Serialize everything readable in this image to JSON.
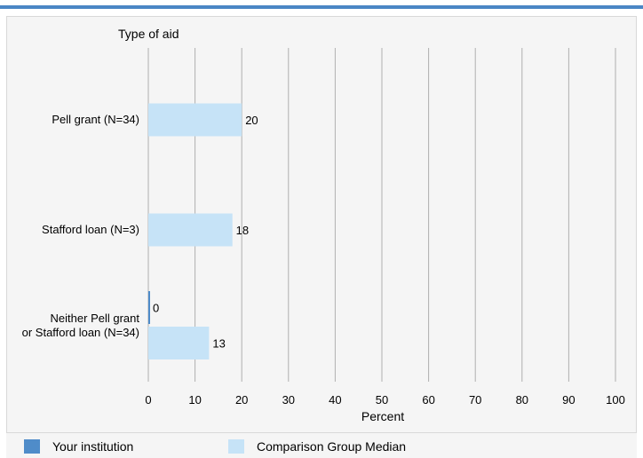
{
  "colors": {
    "accent_bar": "#4a86c5",
    "your_institution": "#4f8cc9",
    "comparison_median": "#c6e3f7",
    "gridline": "#b0b0b0",
    "panel_bg": "#f5f5f5"
  },
  "legend": {
    "your_institution_label": "Your institution",
    "comparison_label": "Comparison Group Median"
  },
  "chart_data": {
    "type": "bar",
    "orientation": "horizontal",
    "title": "Type of aid",
    "xlabel": "Percent",
    "ylabel": "",
    "xlim": [
      0,
      100
    ],
    "x_ticks": [
      0,
      10,
      20,
      30,
      40,
      50,
      60,
      70,
      80,
      90,
      100
    ],
    "grid": true,
    "legend_position": "bottom",
    "categories": [
      "Pell grant  (N=34)",
      "Stafford loan (N=3)",
      "Neither Pell grant or Stafford loan (N=34)"
    ],
    "category_lines": [
      [
        "Pell grant  (N=34)"
      ],
      [
        "Stafford loan (N=3)"
      ],
      [
        "Neither Pell grant",
        "or Stafford loan (N=34)"
      ]
    ],
    "series": [
      {
        "name": "Your institution",
        "values": [
          null,
          null,
          0
        ],
        "labels": [
          "",
          "",
          "0"
        ]
      },
      {
        "name": "Comparison Group Median",
        "values": [
          20,
          18,
          13
        ],
        "labels": [
          "20",
          "18",
          "13"
        ]
      }
    ]
  }
}
